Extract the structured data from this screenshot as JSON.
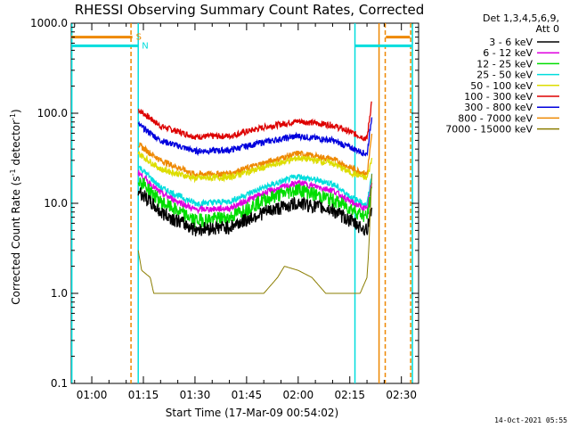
{
  "chart_data": {
    "type": "line",
    "title": "RHESSI Observing Summary Count Rates, Corrected",
    "xlabel": "Start Time (17-Mar-09 00:54:02)",
    "ylabel_main": "Corrected Count Rate (s",
    "ylabel_sup1": "-1",
    "ylabel_mid": " detector",
    "ylabel_sup2": "-1",
    "ylabel_end": ")",
    "y_scale": "log",
    "ylim": [
      0.1,
      1000
    ],
    "y_ticks": [
      {
        "value": 1000,
        "label": "1000.0"
      },
      {
        "value": 100,
        "label": "100.0"
      },
      {
        "value": 10,
        "label": "10.0"
      },
      {
        "value": 1,
        "label": "1.0"
      },
      {
        "value": 0.1,
        "label": "0.1"
      }
    ],
    "xlim_minutes": [
      54.03,
      155
    ],
    "x_ticks": [
      {
        "minute": 60,
        "label": "01:00"
      },
      {
        "minute": 75,
        "label": "01:15"
      },
      {
        "minute": 90,
        "label": "01:30"
      },
      {
        "minute": 105,
        "label": "01:45"
      },
      {
        "minute": 120,
        "label": "02:00"
      },
      {
        "minute": 135,
        "label": "02:15"
      },
      {
        "minute": 150,
        "label": "02:30"
      }
    ],
    "legend_header": [
      "Det 1,3,4,5,6,9,",
      "Att 0"
    ],
    "legend_placement": "right",
    "series": [
      {
        "name": "3 - 6 keV",
        "color": "#000000",
        "x": [
          73.5,
          80,
          90,
          100,
          110,
          120,
          130,
          135,
          140,
          141.5
        ],
        "y": [
          14,
          8,
          5.2,
          5.5,
          8,
          10.2,
          8.5,
          6.5,
          5,
          10
        ]
      },
      {
        "name": "6 - 12 keV",
        "color": "#e000e0",
        "x": [
          73.5,
          80,
          90,
          100,
          110,
          120,
          130,
          135,
          140,
          141.5
        ],
        "y": [
          22,
          13,
          8.5,
          8.8,
          13,
          17,
          14,
          10.5,
          8.5,
          18
        ]
      },
      {
        "name": "12 - 25 keV",
        "color": "#00dd00",
        "x": [
          73.5,
          80,
          90,
          100,
          110,
          120,
          130,
          135,
          140,
          141.5
        ],
        "y": [
          19,
          10.5,
          6.5,
          7,
          11,
          14.5,
          11,
          9,
          7,
          15
        ]
      },
      {
        "name": "25 - 50 keV",
        "color": "#00dddd",
        "x": [
          73.5,
          80,
          90,
          100,
          110,
          120,
          130,
          135,
          140,
          141.5
        ],
        "y": [
          26,
          15,
          10,
          10.5,
          15,
          20,
          16.5,
          12,
          9.5,
          22
        ]
      },
      {
        "name": "50 - 100 keV",
        "color": "#dddd00",
        "x": [
          73.5,
          80,
          90,
          100,
          110,
          120,
          130,
          135,
          140,
          141.5
        ],
        "y": [
          36,
          24,
          19,
          19.5,
          25,
          32,
          28,
          22,
          19,
          32
        ]
      },
      {
        "name": "100 - 300 keV",
        "color": "#dd0000",
        "x": [
          73.5,
          80,
          90,
          100,
          110,
          120,
          130,
          135,
          140,
          141.5
        ],
        "y": [
          110,
          72,
          55,
          56,
          70,
          82,
          74,
          62,
          52,
          150
        ]
      },
      {
        "name": "300 - 800 keV",
        "color": "#0000dd",
        "x": [
          73.5,
          80,
          90,
          100,
          110,
          120,
          130,
          135,
          140,
          141.5
        ],
        "y": [
          75,
          50,
          38,
          39,
          48,
          56,
          50,
          42,
          35,
          100
        ]
      },
      {
        "name": "800 - 7000 keV",
        "color": "#ee8800",
        "x": [
          73.5,
          80,
          90,
          100,
          110,
          120,
          130,
          135,
          140,
          141.5
        ],
        "y": [
          45,
          30,
          21,
          21.5,
          28,
          36,
          31,
          25,
          21,
          60
        ]
      },
      {
        "name": "7000 - 15000 keV",
        "color": "#8b7d00",
        "x": [
          73.5,
          74.5,
          77,
          78,
          80,
          84,
          88,
          110,
          114,
          116,
          120,
          124,
          128,
          130,
          138,
          140,
          140.5,
          141.5
        ],
        "y": [
          3,
          1.8,
          1.5,
          1,
          1,
          1,
          1,
          1,
          1.5,
          2,
          1.8,
          1.5,
          1,
          1,
          1,
          1.5,
          3,
          25
        ]
      }
    ],
    "flag_bars": [
      {
        "label": "S",
        "color": "#ee8800",
        "value": 700,
        "segments": [
          [
            54.03,
            71.8
          ],
          [
            145.5,
            152.5
          ]
        ]
      },
      {
        "label": "N",
        "color": "#00dddd",
        "value": 560,
        "segments": [
          [
            54.03,
            73.5
          ],
          [
            136.5,
            153
          ]
        ]
      }
    ],
    "vertical_markers": [
      {
        "minute": 54.2,
        "color": "#00dddd",
        "style": "solid"
      },
      {
        "minute": 71.4,
        "color": "#ee8800",
        "style": "dashed"
      },
      {
        "minute": 73.5,
        "color": "#00dddd",
        "style": "solid"
      },
      {
        "minute": 136.5,
        "color": "#00dddd",
        "style": "solid"
      },
      {
        "minute": 143.5,
        "color": "#ee8800",
        "style": "solid"
      },
      {
        "minute": 145.3,
        "color": "#ee8800",
        "style": "dashed"
      },
      {
        "minute": 152.7,
        "color": "#ee8800",
        "style": "dashed"
      },
      {
        "minute": 153.2,
        "color": "#00dddd",
        "style": "solid"
      }
    ],
    "footer_date": "14-Oct-2021 05:55"
  }
}
